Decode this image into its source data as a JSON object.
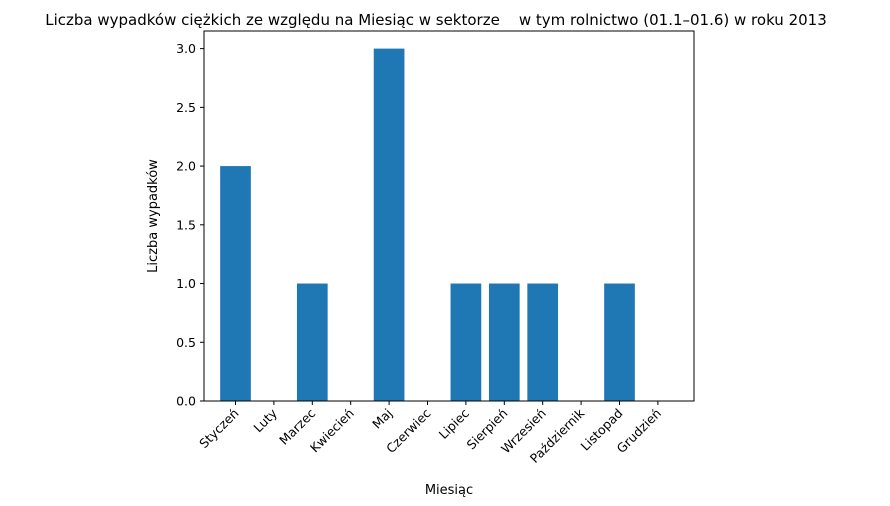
{
  "chart_data": {
    "type": "bar",
    "title": "Liczba wypadków ciężkich ze względu na Miesiąc w sektorze    w tym rolnictwo (01.1–01.6) w roku 2013",
    "xlabel": "Miesiąc",
    "ylabel": "Liczba wypadków",
    "categories": [
      "Styczeń",
      "Luty",
      "Marzec",
      "Kwiecień",
      "Maj",
      "Czerwiec",
      "Lipiec",
      "Sierpień",
      "Wrzesień",
      "Październik",
      "Listopad",
      "Grudzień"
    ],
    "values": [
      2,
      0,
      1,
      0,
      3,
      0,
      1,
      1,
      1,
      0,
      1,
      0
    ],
    "ylim": [
      0,
      3.15
    ],
    "yticks": [
      "0.0",
      "0.5",
      "1.0",
      "1.5",
      "2.0",
      "2.5",
      "3.0"
    ],
    "grid": false,
    "bar_color": "#1f77b4"
  }
}
